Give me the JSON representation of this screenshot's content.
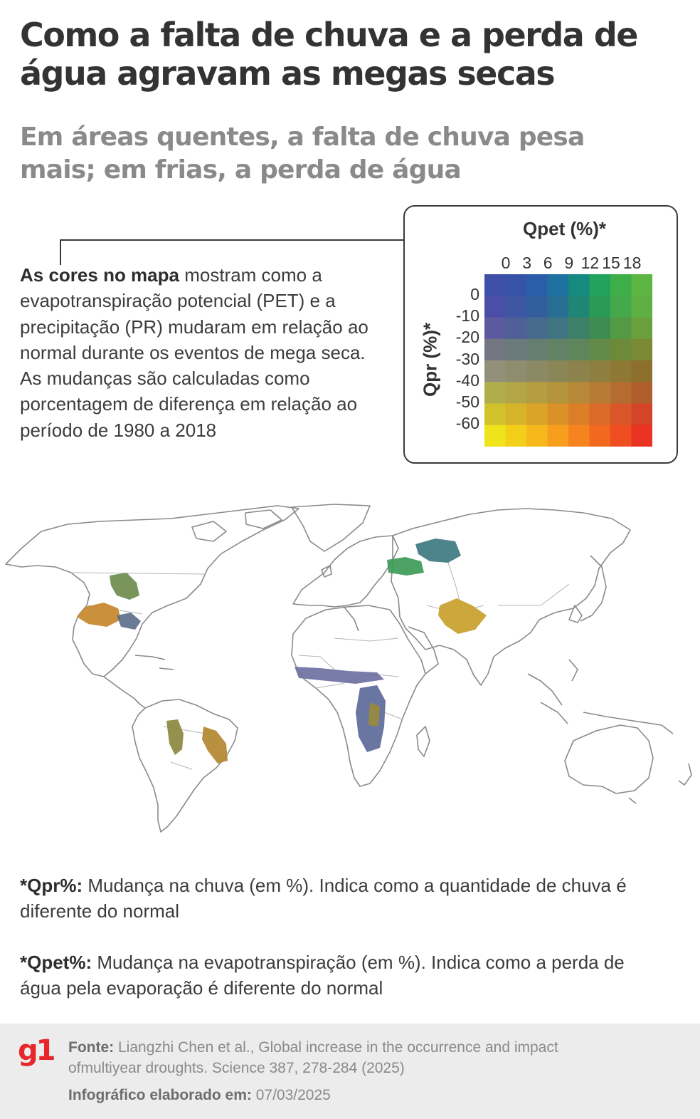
{
  "title": "Como a falta de chuva e a perda de água agravam as megas secas",
  "subtitle": "Em áreas quentes, a falta de chuva pesa mais; em frias, a perda de água",
  "description": {
    "lead": "As cores no mapa",
    "body": " mostram como a evapotranspiração potencial (PET) e a precipitação (PR) mudaram em relação ao normal durante os eventos de mega seca. As mudanças são calculadas como porcentagem de diferença em relação ao período de 1980 a 2018"
  },
  "legend": {
    "title": "Qpet (%)*",
    "y_label": "Qpr (%)*",
    "x_ticks": [
      "0",
      "3",
      "6",
      "9",
      "12",
      "15",
      "18"
    ],
    "y_ticks": [
      "0",
      "-10",
      "-20",
      "-30",
      "-40",
      "-50",
      "-60"
    ],
    "colors": [
      [
        "#3e50a8",
        "#3653a8",
        "#2a5ea8",
        "#1d72a0",
        "#168a80",
        "#21a35e",
        "#3eaf48",
        "#5db544"
      ],
      [
        "#4a4ea6",
        "#3f56a4",
        "#325e9e",
        "#276f92",
        "#1f8575",
        "#2a9a58",
        "#45a84a",
        "#5eb042"
      ],
      [
        "#5c5a9e",
        "#4f6098",
        "#456a8c",
        "#3f7480",
        "#3c8068",
        "#3f8c52",
        "#549a44",
        "#6aa03c"
      ],
      [
        "#747682",
        "#6b7a7a",
        "#657e70",
        "#628266",
        "#5f865a",
        "#648a4a",
        "#6d8a3a",
        "#7a8a34"
      ],
      [
        "#93907a",
        "#8f8c70",
        "#8c8a64",
        "#8a8658",
        "#8c824c",
        "#8e7e40",
        "#8e7834",
        "#8e702e"
      ],
      [
        "#b0ad4c",
        "#b2a646",
        "#b49e40",
        "#b4943c",
        "#b68838",
        "#b67c34",
        "#b46c30",
        "#b05e2e"
      ],
      [
        "#d2c22c",
        "#d6b42a",
        "#d9a428",
        "#da9228",
        "#dc7e28",
        "#da6a28",
        "#d85628",
        "#d44428"
      ],
      [
        "#efe31c",
        "#f4cf1a",
        "#f6b81a",
        "#f79f1c",
        "#f5841e",
        "#f2681f",
        "#ef4d22",
        "#ea3323"
      ]
    ]
  },
  "notes": [
    {
      "label": "*Qpr%:",
      "text": " Mudança na chuva (em %). Indica como a quantidade de chuva é diferente do normal"
    },
    {
      "label": "*Qpet%:",
      "text": " Mudança na evapotranspiração (em %). Indica como a perda de água pela evaporação é diferente do normal"
    }
  ],
  "footer": {
    "logo": "g1",
    "source_label": "Fonte:",
    "source_text": "  Liangzhi Chen et al., Global increase in the occurrence and impact ofmultiyear droughts. Science 387, 278-284 (2025)",
    "made_label": "Infográfico elaborado em:",
    "made_date": " 07/03/2025"
  }
}
